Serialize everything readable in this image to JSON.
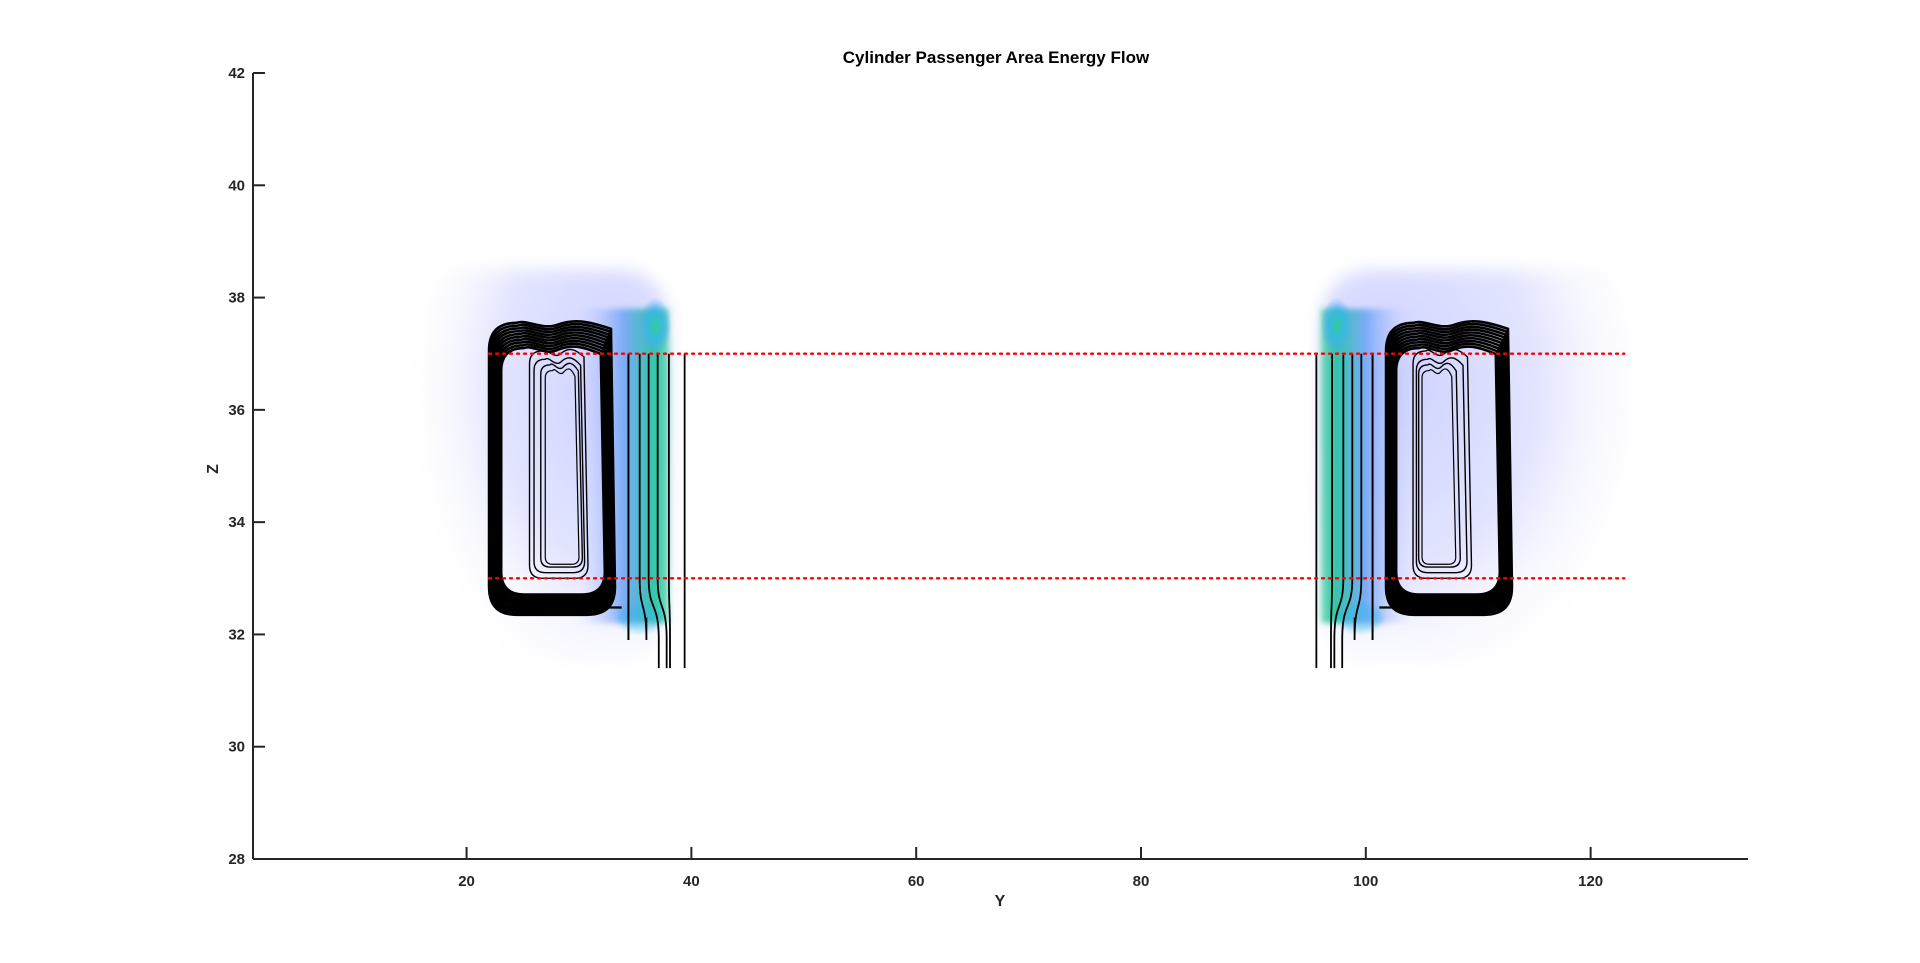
{
  "chart_data": {
    "type": "scatter",
    "title": "Cylinder Passenger Area Energy Flow",
    "xlabel": "Y",
    "ylabel": "Z",
    "xlim": [
      1,
      134
    ],
    "ylim": [
      28,
      42
    ],
    "xticks": [
      20,
      40,
      60,
      80,
      100,
      120
    ],
    "yticks": [
      28,
      30,
      32,
      34,
      36,
      38,
      40,
      42
    ],
    "grid": false,
    "legend": "none",
    "boundary_lines": [
      {
        "style": "dotted",
        "color": "#ff0000",
        "z": 37,
        "y_range": [
          22,
          123
        ]
      },
      {
        "style": "dotted",
        "color": "#ff0000",
        "z": 33,
        "y_range": [
          22,
          123
        ]
      }
    ],
    "energy_regions": [
      {
        "side": "left",
        "y_range": [
          15,
          38
        ],
        "z_range": [
          31.5,
          38.5
        ],
        "peak": [
          36.8,
          37.5
        ]
      },
      {
        "side": "right",
        "y_range": [
          96,
          125
        ],
        "z_range": [
          31.5,
          38.5
        ],
        "peak": [
          97.4,
          37.5
        ]
      }
    ],
    "streamline_color": "#000000",
    "colors": {
      "axis": "#262626",
      "boundary": "#ff0000",
      "energy_low": "#c8ccff",
      "energy_mid": "#4db5ff",
      "energy_high": "#33cc99"
    }
  }
}
